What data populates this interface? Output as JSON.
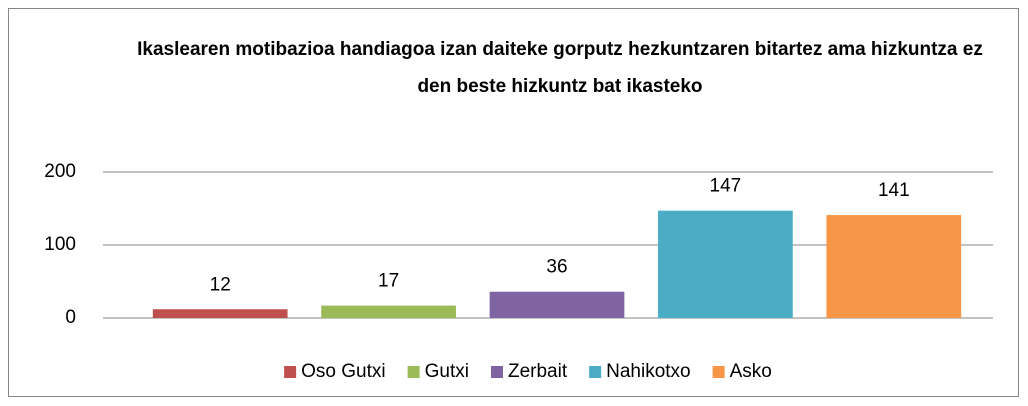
{
  "chart_data": {
    "type": "bar",
    "title": "Ikaslearen motibazioa handiagoa izan daiteke gorputz hezkuntzaren bitartez ama hizkuntza ez den beste hizkuntz bat ikasteko",
    "categories": [
      "Oso Gutxi",
      "Gutxi",
      "Zerbait",
      "Nahikotxo",
      "Asko"
    ],
    "values": [
      12,
      17,
      36,
      147,
      141
    ],
    "colors": [
      "#c0504d",
      "#9bbb59",
      "#8064a2",
      "#4bacc6",
      "#f79646"
    ],
    "ylim": [
      0,
      200
    ],
    "yticks": [
      0,
      100,
      200
    ],
    "grid": true,
    "legend": "bottom"
  }
}
